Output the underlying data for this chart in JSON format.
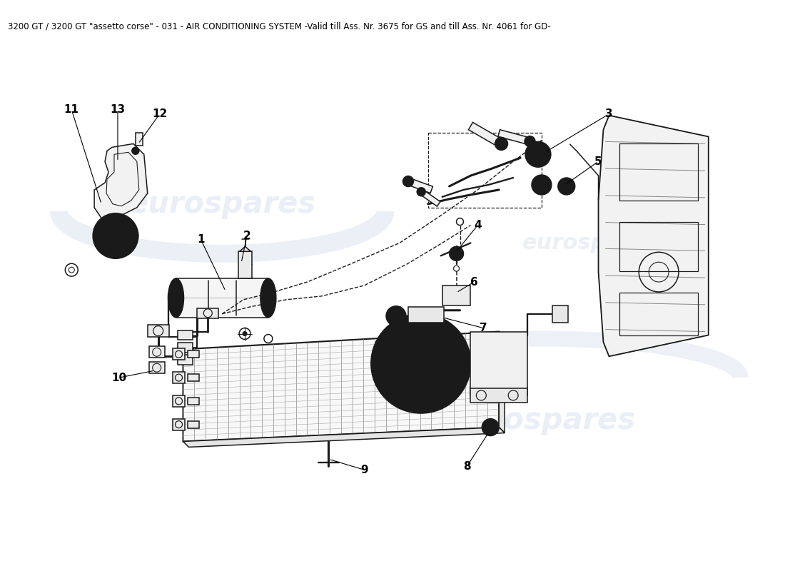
{
  "title": "3200 GT / 3200 GT \"assetto corse\" - 031 - AIR CONDITIONING SYSTEM -Valid till Ass. Nr. 3675 for GS and till Ass. Nr. 4061 for GD-",
  "title_fontsize": 8.5,
  "background_color": "#ffffff",
  "watermark_text": "eurospares",
  "watermark_color": "#c8d4e8",
  "watermark_alpha": 0.45,
  "fig_width": 11.0,
  "fig_height": 8.0,
  "label_fontsize": 11,
  "label_fontweight": "bold",
  "lc": "#1a1a1a",
  "lw": 1.1
}
